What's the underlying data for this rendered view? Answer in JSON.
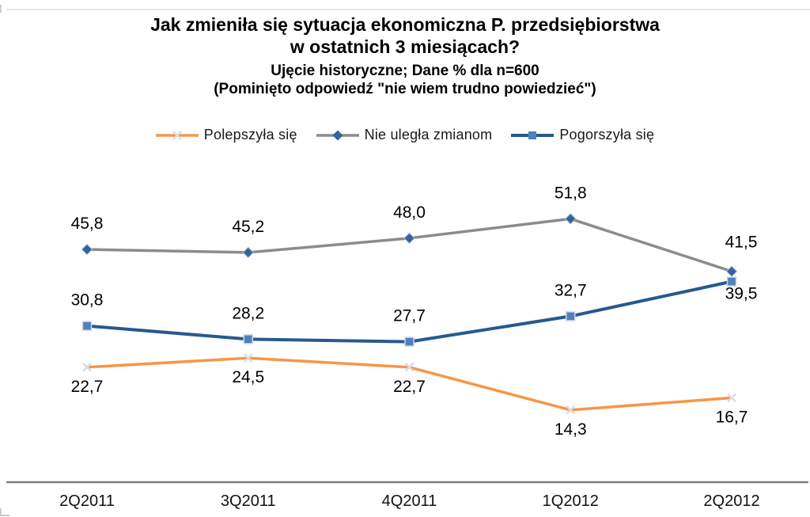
{
  "title": {
    "line1": "Jak zmieniła się sytuacja ekonomiczna P. przedsiębiorstwa",
    "line2": "w ostatnich 3 miesiącach?",
    "line3": "Ujęcie historyczne; Dane % dla n=600",
    "line4": "(Pominięto odpowiedź \"nie wiem trudno powiedzieć\")"
  },
  "chart_data": {
    "type": "line",
    "categories": [
      "2Q2011",
      "3Q2011",
      "4Q2011",
      "1Q2012",
      "2Q2012"
    ],
    "series": [
      {
        "name": "Polepszyła się",
        "color": "#F79646",
        "marker": "x-light",
        "values": [
          22.7,
          24.5,
          22.7,
          14.3,
          16.7
        ],
        "labels": [
          "22,7",
          "24,5",
          "22,7",
          "14,3",
          "16,7"
        ],
        "label_placement": [
          "below",
          "below",
          "below",
          "below",
          "below"
        ]
      },
      {
        "name": "Nie uległa zmianom",
        "color": "#8C8C8C",
        "marker": "diamond-blue",
        "values": [
          45.8,
          45.2,
          48.0,
          51.8,
          41.5
        ],
        "labels": [
          "45,8",
          "45,2",
          "48,0",
          "51,8",
          "41,5"
        ],
        "label_placement": [
          "above",
          "above",
          "above",
          "above",
          "above-right"
        ]
      },
      {
        "name": "Pogorszyła się",
        "color": "#27598F",
        "marker": "square-blue",
        "values": [
          30.8,
          28.2,
          27.7,
          32.7,
          39.5
        ],
        "labels": [
          "30,8",
          "28,2",
          "27,7",
          "32,7",
          "39,5"
        ],
        "label_placement": [
          "above",
          "above",
          "above",
          "above",
          "below-right"
        ]
      }
    ],
    "ylim": [
      0,
      60
    ],
    "grid": false,
    "legend_position": "top",
    "axis_color": "#7F7F7F",
    "marker_colors": {
      "x_light": "#D9DDE6",
      "diamond_blue": "#35639B",
      "diamond_border": "#A9BCD4",
      "square_blue": "#4F81BD",
      "square_border": "#C9D6E8"
    }
  }
}
